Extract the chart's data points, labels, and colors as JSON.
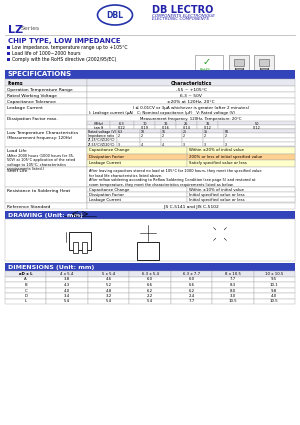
{
  "blue_header": "#2222aa",
  "blue_text": "#2222aa",
  "white": "#ffffff",
  "black": "#000000",
  "gray_border": "#aaaaaa",
  "light_gray_bg": "#e8e8f0",
  "spec_header_bg": "#3344bb",
  "rohs_green": "#229922",
  "bullet_blue": "#2222aa",
  "logo_oval_color": "#2233aa",
  "company_name": "DB LECTRO",
  "company_sub1": "COMPONENTS ELECTRONIQUE",
  "company_sub2": "ELECTRONIC COMPONENTS",
  "lz_text": "LZ",
  "series_text": "Series",
  "chip_type": "CHIP TYPE, LOW IMPEDANCE",
  "bullet1": "Low impedance, temperature range up to +105°C",
  "bullet2": "Load life of 1000~2000 hours",
  "bullet3": "Comply with the RoHS directive (2002/95/EC)",
  "spec_title": "SPECIFICATIONS",
  "drawing_title": "DRAWING (Unit: mm)",
  "dim_title": "DIMENSIONS (Unit: mm)",
  "dim_headers": [
    "øD x L",
    "4 x 5.4",
    "5 x 5.4",
    "6.3 x 5.4",
    "6.3 x 7.7",
    "8 x 10.5",
    "10 x 10.5"
  ],
  "dim_rows": [
    [
      "A",
      "3.8",
      "4.6",
      "6.0",
      "6.0",
      "7.7",
      "9.5"
    ],
    [
      "B",
      "4.3",
      "5.2",
      "6.6",
      "6.6",
      "8.3",
      "10.1"
    ],
    [
      "C",
      "4.0",
      "4.8",
      "6.2",
      "6.2",
      "8.0",
      "9.8"
    ],
    [
      "D",
      "3.4",
      "3.2",
      "2.2",
      "2.4",
      "3.0",
      "4.0"
    ],
    [
      "L",
      "5.4",
      "5.4",
      "5.4",
      "7.7",
      "10.5",
      "10.5"
    ]
  ]
}
